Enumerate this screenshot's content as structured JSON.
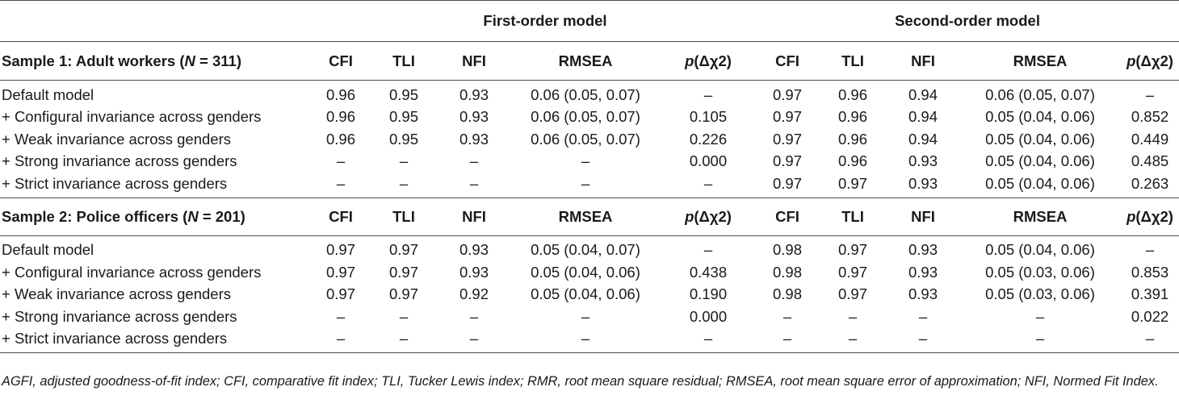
{
  "header": {
    "first_order": "First-order model",
    "second_order": "Second-order model"
  },
  "columns": {
    "cfi": "CFI",
    "tli": "TLI",
    "nfi": "NFI",
    "rmsea": "RMSEA",
    "p_prefix": "p",
    "p_suffix": "(Δχ2)"
  },
  "samples": [
    {
      "label_prefix": "Sample 1: Adult workers (",
      "label_n": "N",
      "label_suffix": " = 311)",
      "rows": [
        {
          "label": "Default model",
          "f_cfi": "0.96",
          "f_tli": "0.95",
          "f_nfi": "0.93",
          "f_rmsea": "0.06 (0.05, 0.07)",
          "f_p": "–",
          "s_cfi": "0.97",
          "s_tli": "0.96",
          "s_nfi": "0.94",
          "s_rmsea": "0.06 (0.05, 0.07)",
          "s_p": "–"
        },
        {
          "label": " + Configural invariance across genders",
          "f_cfi": "0.96",
          "f_tli": "0.95",
          "f_nfi": "0.93",
          "f_rmsea": "0.06 (0.05, 0.07)",
          "f_p": "0.105",
          "s_cfi": "0.97",
          "s_tli": "0.96",
          "s_nfi": "0.94",
          "s_rmsea": "0.05 (0.04, 0.06)",
          "s_p": "0.852"
        },
        {
          "label": " + Weak invariance across genders",
          "f_cfi": "0.96",
          "f_tli": "0.95",
          "f_nfi": "0.93",
          "f_rmsea": "0.06 (0.05, 0.07)",
          "f_p": "0.226",
          "s_cfi": "0.97",
          "s_tli": "0.96",
          "s_nfi": "0.94",
          "s_rmsea": "0.05 (0.04, 0.06)",
          "s_p": "0.449"
        },
        {
          "label": " + Strong invariance across genders",
          "f_cfi": "–",
          "f_tli": "–",
          "f_nfi": "–",
          "f_rmsea": "–",
          "f_p": "0.000",
          "s_cfi": "0.97",
          "s_tli": "0.96",
          "s_nfi": "0.93",
          "s_rmsea": "0.05 (0.04, 0.06)",
          "s_p": "0.485"
        },
        {
          "label": " + Strict invariance across genders",
          "f_cfi": "–",
          "f_tli": "–",
          "f_nfi": "–",
          "f_rmsea": "–",
          "f_p": "–",
          "s_cfi": "0.97",
          "s_tli": "0.97",
          "s_nfi": "0.93",
          "s_rmsea": "0.05 (0.04, 0.06)",
          "s_p": "0.263"
        }
      ]
    },
    {
      "label_prefix": "Sample 2: Police officers (",
      "label_n": "N",
      "label_suffix": " = 201)",
      "rows": [
        {
          "label": "Default model",
          "f_cfi": "0.97",
          "f_tli": "0.97",
          "f_nfi": "0.93",
          "f_rmsea": "0.05 (0.04, 0.07)",
          "f_p": "–",
          "s_cfi": "0.98",
          "s_tli": "0.97",
          "s_nfi": "0.93",
          "s_rmsea": "0.05 (0.04, 0.06)",
          "s_p": "–"
        },
        {
          "label": " + Configural invariance across genders",
          "f_cfi": "0.97",
          "f_tli": "0.97",
          "f_nfi": "0.93",
          "f_rmsea": "0.05 (0.04, 0.06)",
          "f_p": "0.438",
          "s_cfi": "0.98",
          "s_tli": "0.97",
          "s_nfi": "0.93",
          "s_rmsea": "0.05 (0.03, 0.06)",
          "s_p": "0.853"
        },
        {
          "label": " + Weak invariance across genders",
          "f_cfi": "0.97",
          "f_tli": "0.97",
          "f_nfi": "0.92",
          "f_rmsea": "0.05 (0.04, 0.06)",
          "f_p": "0.190",
          "s_cfi": "0.98",
          "s_tli": "0.97",
          "s_nfi": "0.93",
          "s_rmsea": "0.05 (0.03, 0.06)",
          "s_p": "0.391"
        },
        {
          "label": " + Strong invariance across genders",
          "f_cfi": "–",
          "f_tli": "–",
          "f_nfi": "–",
          "f_rmsea": "–",
          "f_p": "0.000",
          "s_cfi": "–",
          "s_tli": "–",
          "s_nfi": "–",
          "s_rmsea": "–",
          "s_p": "0.022"
        },
        {
          "label": " + Strict invariance across genders",
          "f_cfi": "–",
          "f_tli": "–",
          "f_nfi": "–",
          "f_rmsea": "–",
          "f_p": "–",
          "s_cfi": "–",
          "s_tli": "–",
          "s_nfi": "–",
          "s_rmsea": "–",
          "s_p": "–"
        }
      ]
    }
  ],
  "footnote": "AGFI, adjusted goodness-of-fit index; CFI, comparative fit index; TLI, Tucker Lewis index; RMR, root mean square residual; RMSEA, root mean square error of approximation; NFI, Normed Fit Index."
}
